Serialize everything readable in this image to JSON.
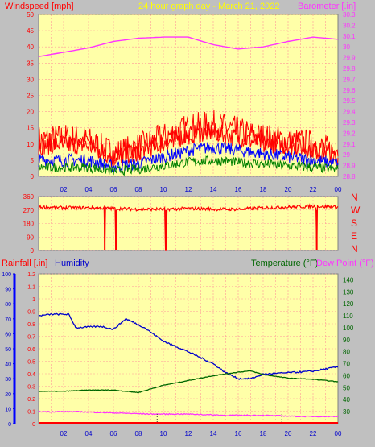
{
  "header": {
    "left": "Windspeed [mph]",
    "center": "24 hour graph day - March 21, 2022",
    "right": "Barometer [.in]"
  },
  "direction_letters": [
    "N",
    "W",
    "S",
    "E",
    "N"
  ],
  "bottom_header": {
    "rain": "Rainfall [.in]",
    "humidity": "Humidity",
    "temperature": "Temperature (°F)",
    "dewpoint": "Dew Point (°F)"
  },
  "colors": {
    "bg": "#c0c0c0",
    "plot_bg": "#ffffa8",
    "grid": "#ff9999",
    "gust": "#ff0000",
    "wind": "#0000ff",
    "wind_low": "#008000",
    "barometer": "#ff33ff",
    "direction": "#ff0000",
    "humidity": "#0000cc",
    "temperature": "#006600",
    "dewpoint": "#ff33ff",
    "rain_axis": "#0000ff"
  },
  "x_ticks": [
    "02",
    "04",
    "06",
    "08",
    "10",
    "12",
    "14",
    "16",
    "18",
    "20",
    "22",
    "00"
  ],
  "chart_data": [
    {
      "type": "line",
      "name": "wind",
      "x_range_hours": [
        0,
        24
      ],
      "ylim": [
        0,
        50
      ],
      "yticks": [
        "0",
        "5",
        "10",
        "15",
        "20",
        "25",
        "30",
        "35",
        "40",
        "45",
        "50"
      ],
      "y2lim": [
        28.8,
        30.3
      ],
      "y2ticks": [
        "28.8",
        "28.9",
        "29",
        "29.1",
        "29.2",
        "29.3",
        "29.4",
        "29.5",
        "29.6",
        "29.7",
        "29.8",
        "29.9",
        "30",
        "30.1",
        "30.2",
        "30.3"
      ],
      "series": [
        {
          "name": "Windspeed",
          "x": [
            0,
            2,
            4,
            6,
            8,
            10,
            12,
            14,
            16,
            18,
            20,
            22,
            24
          ],
          "values": [
            5,
            5,
            5,
            3,
            4,
            6,
            8,
            9,
            8,
            7,
            6,
            5,
            4
          ]
        },
        {
          "name": "Gust",
          "x": [
            0,
            2,
            4,
            6,
            8,
            10,
            12,
            14,
            16,
            18,
            20,
            22,
            24
          ],
          "values": [
            11,
            12,
            11,
            7,
            9,
            12,
            15,
            16,
            14,
            12,
            11,
            10,
            7
          ]
        },
        {
          "name": "Barometer",
          "x": [
            0,
            2,
            4,
            6,
            8,
            10,
            12,
            14,
            16,
            18,
            20,
            22,
            24
          ],
          "values": [
            29.91,
            29.95,
            29.99,
            30.05,
            30.08,
            30.09,
            30.09,
            30.02,
            29.98,
            30.0,
            30.05,
            30.09,
            30.07
          ]
        }
      ]
    },
    {
      "type": "line",
      "name": "wind-direction",
      "ylim": [
        0,
        360
      ],
      "yticks": [
        "0",
        "90",
        "180",
        "270",
        "360"
      ],
      "series": [
        {
          "name": "Direction",
          "x": [
            0,
            2,
            4,
            6,
            8,
            10,
            12,
            14,
            16,
            18,
            20,
            22,
            24
          ],
          "values": [
            290,
            285,
            285,
            280,
            275,
            275,
            280,
            275,
            275,
            285,
            290,
            295,
            290
          ]
        }
      ],
      "dips_hours": [
        5.3,
        6.2,
        10.2,
        22.3
      ]
    },
    {
      "type": "line",
      "name": "temp-humidity",
      "ylim_humidity": [
        0,
        100
      ],
      "humidity_ticks": [
        "0",
        "10",
        "20",
        "30",
        "40",
        "50",
        "60",
        "70",
        "80",
        "90",
        "100"
      ],
      "ylim_rain": [
        0,
        1.2
      ],
      "rain_ticks": [
        "0",
        "0.1",
        "0.2",
        "0.3",
        "0.4",
        "0.5",
        "0.6",
        "0.7",
        "0.8",
        "0.9",
        "1",
        "1.1",
        "1.2"
      ],
      "ylim_temp": [
        20,
        145
      ],
      "temp_ticks": [
        "30",
        "40",
        "50",
        "60",
        "70",
        "80",
        "90",
        "100",
        "110",
        "120",
        "130",
        "140"
      ],
      "series": [
        {
          "name": "Humidity",
          "x": [
            0,
            1,
            2.4,
            3,
            5,
            6,
            7,
            8.5,
            10,
            12,
            14,
            15,
            16,
            17,
            18,
            20,
            22,
            24
          ],
          "values": [
            72,
            73,
            73,
            64,
            65,
            63,
            70,
            64,
            55,
            48,
            40,
            34,
            30,
            30,
            33,
            34,
            35,
            38
          ]
        },
        {
          "name": "Temperature",
          "x": [
            0,
            2,
            4,
            6,
            8,
            10,
            12,
            14,
            16,
            17,
            18,
            20,
            22,
            24
          ],
          "values": [
            47,
            47,
            48,
            48,
            46,
            52,
            56,
            60,
            63,
            64,
            61,
            58,
            57,
            55
          ]
        },
        {
          "name": "Dew Point",
          "x": [
            0,
            3,
            6,
            9,
            12,
            15,
            18,
            21,
            24
          ],
          "values": [
            30,
            30,
            29,
            28,
            28,
            27,
            27,
            26,
            26
          ]
        },
        {
          "name": "Rainfall",
          "x": [
            0,
            24
          ],
          "values": [
            0,
            0
          ]
        }
      ]
    }
  ]
}
